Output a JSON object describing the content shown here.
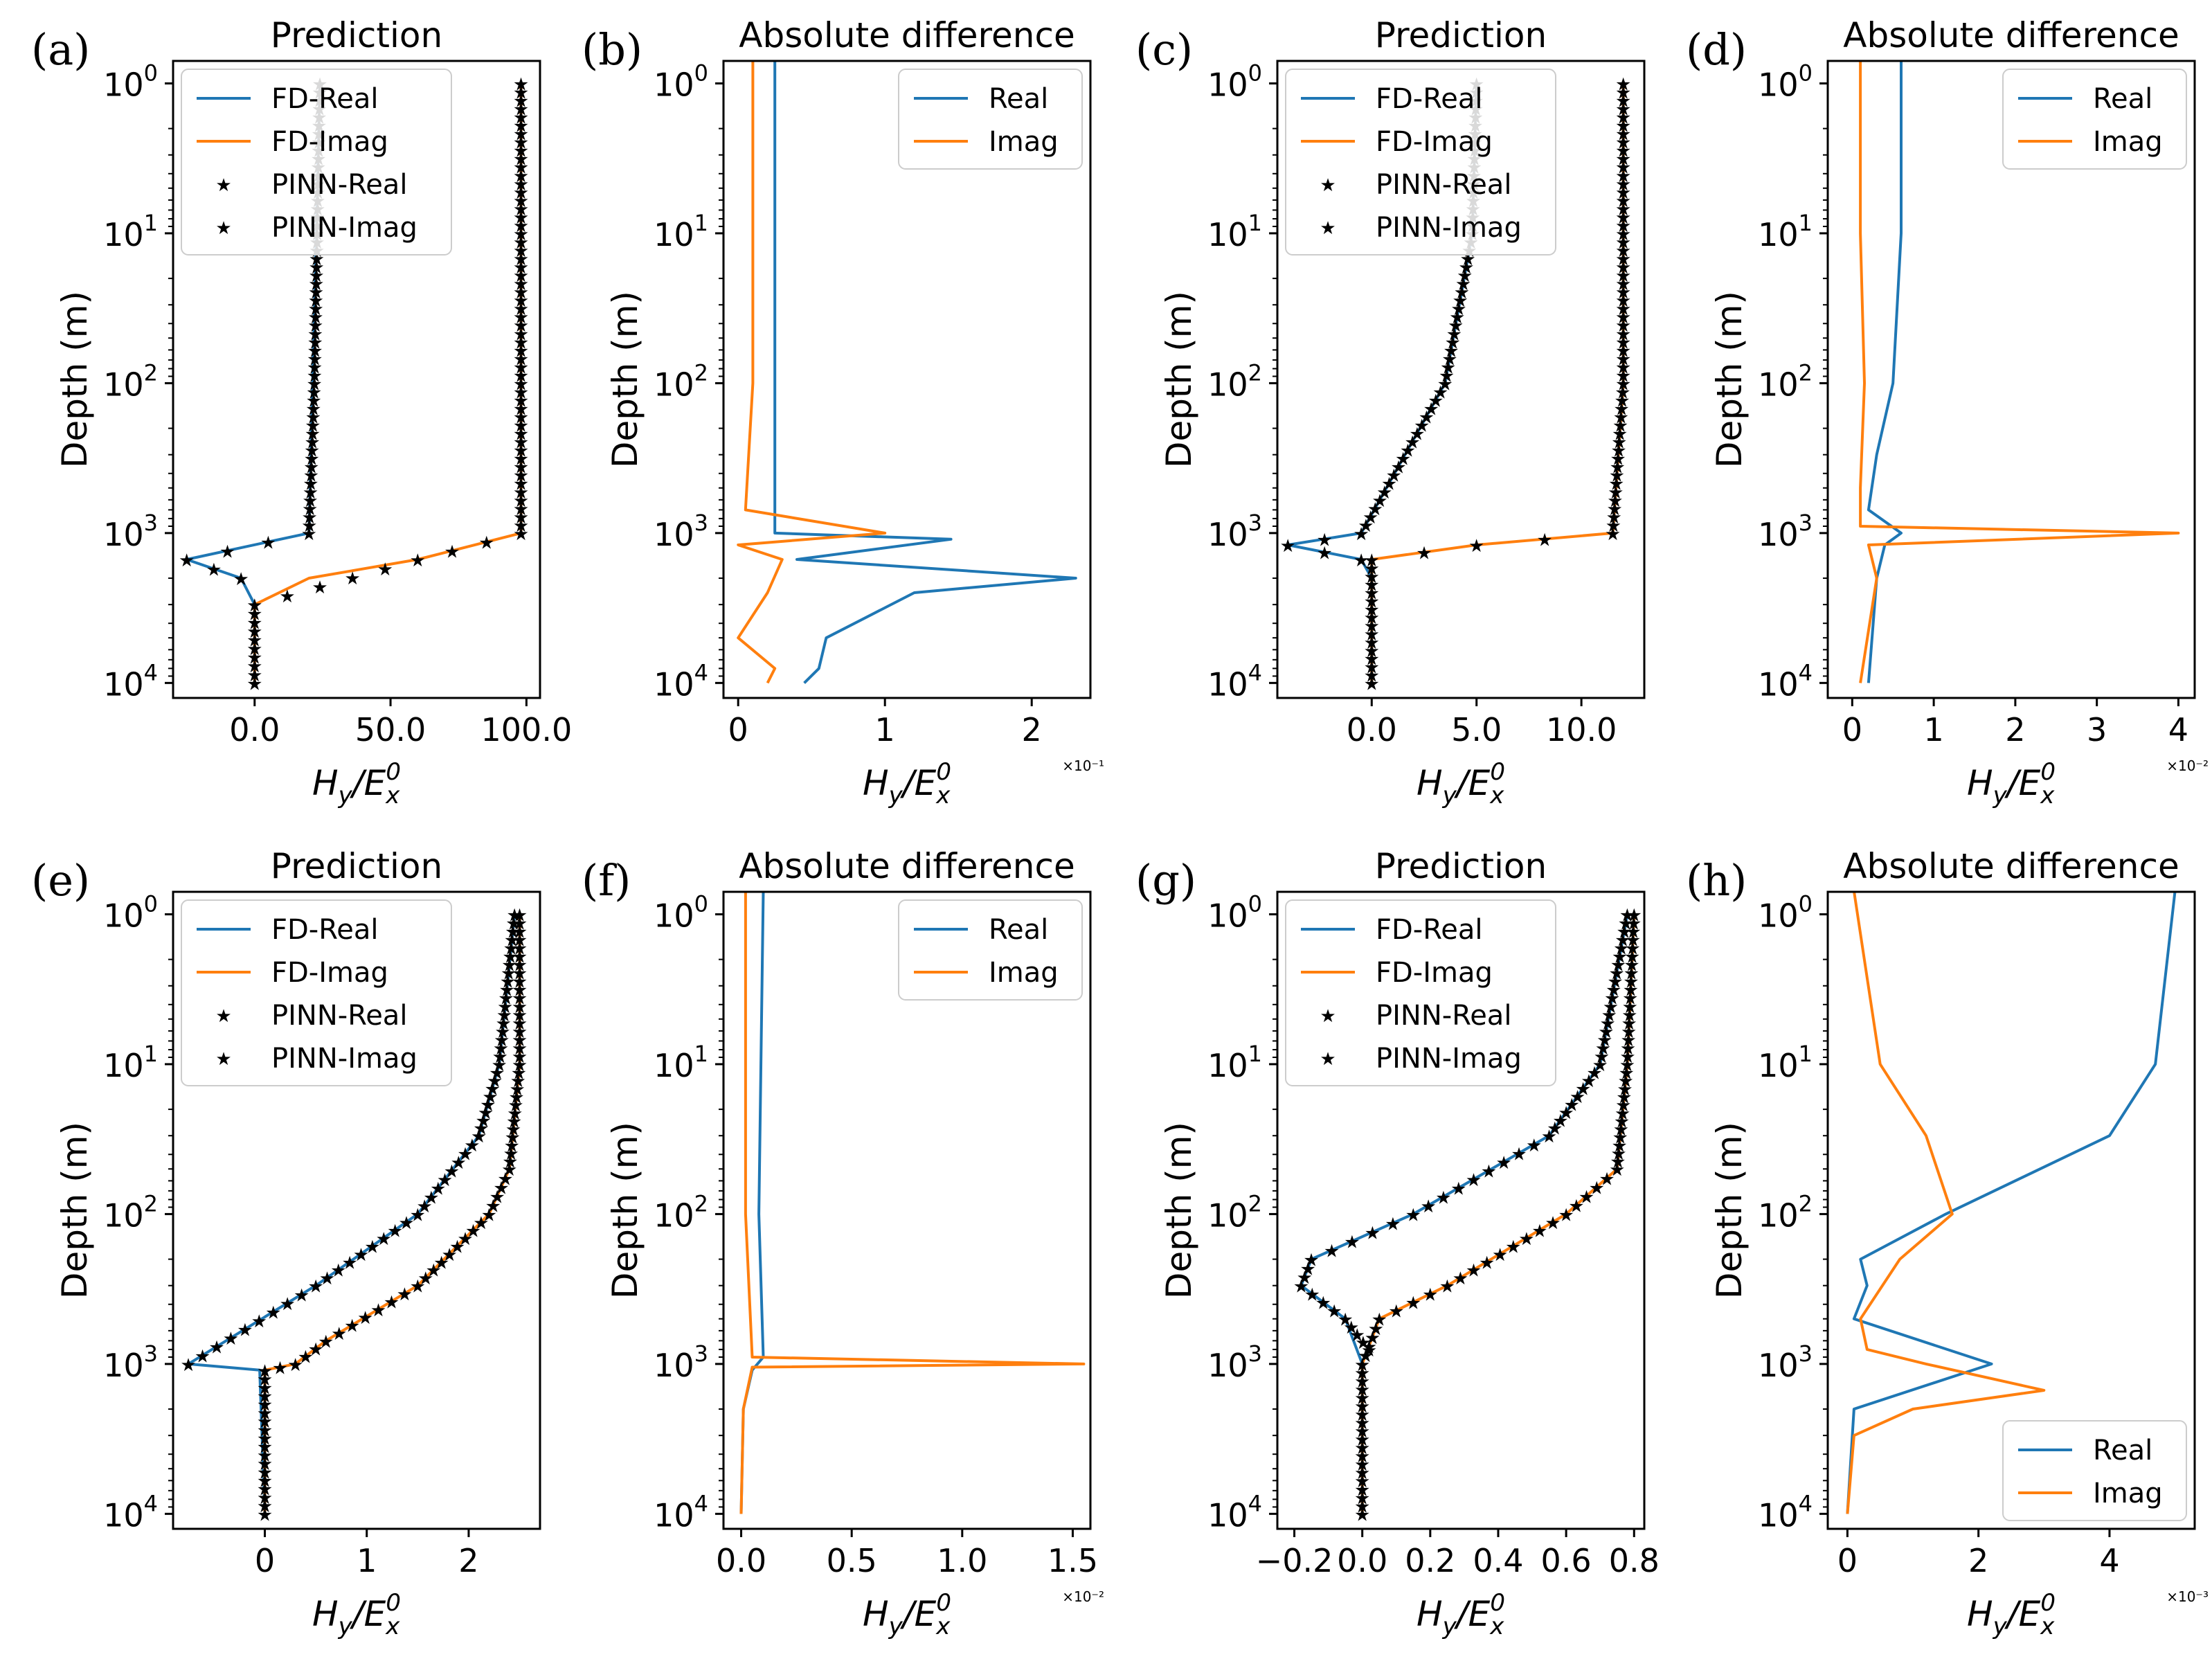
{
  "figure": {
    "description_free": true,
    "xlabel": {
      "main": "H",
      "sub1": "y",
      "slash": "/",
      "main2": "E",
      "sub2": "x",
      "sup2": "0"
    }
  },
  "chart_data": [
    {
      "id": "a",
      "letter": "(a)",
      "type": "line",
      "title": "Prediction",
      "ylabel": "Depth (m)",
      "xlim": [
        -30,
        105
      ],
      "ylim_log": [
        -0.15,
        4.1
      ],
      "yscale": "log",
      "y_inverted": true,
      "xticks": [
        0,
        50,
        100
      ],
      "xtick_labels": [
        "0.0",
        "50.0",
        "100.0"
      ],
      "multiplier": "",
      "legend_position": "top-left",
      "legend": [
        "FD-Real",
        "FD-Imag",
        "PINN-Real",
        "PINN-Imag"
      ],
      "series": [
        {
          "name": "FD-Real",
          "style": "line",
          "color": "#1f77b4",
          "y": [
            1,
            1000,
            1500,
            2000,
            3000,
            10000
          ],
          "x": [
            24,
            20,
            -25,
            -5,
            0,
            0
          ]
        },
        {
          "name": "FD-Imag",
          "style": "line",
          "color": "#ff7f0e",
          "y": [
            1,
            1000,
            1500,
            2000,
            3000,
            10000
          ],
          "x": [
            98,
            98,
            60,
            20,
            0,
            0
          ]
        },
        {
          "name": "PINN-Real",
          "style": "marker",
          "color": "#2ca02c",
          "y": [
            1,
            10,
            100,
            1000,
            1500,
            2000
          ],
          "x": [
            24,
            23,
            22,
            20,
            -25,
            -5
          ]
        },
        {
          "name": "PINN-Imag",
          "style": "marker",
          "color": "#d62728",
          "y": [
            1,
            10,
            100,
            1000,
            1500,
            3000,
            10000
          ],
          "x": [
            98,
            98,
            98,
            98,
            60,
            0,
            0
          ]
        }
      ]
    },
    {
      "id": "b",
      "letter": "(b)",
      "type": "line",
      "title": "Absolute difference",
      "ylabel": "Depth (m)",
      "xlim": [
        -0.1,
        2.4
      ],
      "ylim_log": [
        -0.15,
        4.1
      ],
      "yscale": "log",
      "y_inverted": true,
      "xticks": [
        0,
        1,
        2
      ],
      "xtick_labels": [
        "0",
        "1",
        "2"
      ],
      "multiplier": "×10⁻¹",
      "legend_position": "top-right",
      "legend": [
        "Real",
        "Imag"
      ],
      "series": [
        {
          "name": "Real",
          "style": "line",
          "color": "#1f77b4",
          "y": [
            0.7,
            100,
            1000,
            1100,
            1500,
            2000,
            2500,
            5000,
            8000,
            10000
          ],
          "x": [
            0.25,
            0.25,
            0.25,
            1.45,
            0.4,
            2.3,
            1.2,
            0.6,
            0.55,
            0.45
          ]
        },
        {
          "name": "Imag",
          "style": "line",
          "color": "#ff7f0e",
          "y": [
            0.7,
            100,
            700,
            1000,
            1200,
            1500,
            2500,
            5000,
            8000,
            10000
          ],
          "x": [
            0.1,
            0.1,
            0.05,
            1.0,
            0.0,
            0.3,
            0.2,
            0.0,
            0.25,
            0.2
          ]
        }
      ]
    },
    {
      "id": "c",
      "letter": "(c)",
      "type": "line",
      "title": "Prediction",
      "ylabel": "Depth (m)",
      "xlim": [
        -4.5,
        13
      ],
      "ylim_log": [
        -0.15,
        4.1
      ],
      "yscale": "log",
      "y_inverted": true,
      "xticks": [
        0,
        5,
        10
      ],
      "xtick_labels": [
        "0.0",
        "5.0",
        "10.0"
      ],
      "multiplier": "",
      "legend_position": "top-left",
      "legend": [
        "FD-Real",
        "FD-Imag",
        "PINN-Real",
        "PINN-Imag"
      ],
      "series": [
        {
          "name": "FD-Real",
          "style": "line",
          "color": "#1f77b4",
          "y": [
            1,
            10,
            100,
            1000,
            1200,
            1500,
            2000,
            10000
          ],
          "x": [
            5.0,
            4.8,
            3.5,
            -0.5,
            -4.0,
            -0.5,
            0.0,
            0.0
          ]
        },
        {
          "name": "FD-Imag",
          "style": "line",
          "color": "#ff7f0e",
          "y": [
            1,
            10,
            100,
            1000,
            1200,
            1500,
            10000
          ],
          "x": [
            12.0,
            12.0,
            12.0,
            11.5,
            5.0,
            0.0,
            0.0
          ]
        },
        {
          "name": "PINN-Real",
          "style": "marker",
          "color": "#2ca02c",
          "y": [
            1,
            10,
            100,
            1000,
            1200,
            1500
          ],
          "x": [
            5.0,
            4.8,
            3.5,
            -0.5,
            -4.0,
            -0.5
          ]
        },
        {
          "name": "PINN-Imag",
          "style": "marker",
          "color": "#d62728",
          "y": [
            1,
            10,
            100,
            1000,
            1200,
            1500,
            10000
          ],
          "x": [
            12.0,
            12.0,
            12.0,
            11.5,
            5.0,
            0.0,
            0.0
          ]
        }
      ]
    },
    {
      "id": "d",
      "letter": "(d)",
      "type": "line",
      "title": "Absolute difference",
      "ylabel": "Depth (m)",
      "xlim": [
        -0.3,
        4.2
      ],
      "ylim_log": [
        -0.15,
        4.1
      ],
      "yscale": "log",
      "y_inverted": true,
      "xticks": [
        0,
        1,
        2,
        3,
        4
      ],
      "xtick_labels": [
        "0",
        "1",
        "2",
        "3",
        "4"
      ],
      "multiplier": "×10⁻²",
      "legend_position": "top-right",
      "legend": [
        "Real",
        "Imag"
      ],
      "series": [
        {
          "name": "Real",
          "style": "line",
          "color": "#1f77b4",
          "y": [
            0.7,
            10,
            100,
            300,
            700,
            1000,
            1200,
            2000,
            10000
          ],
          "x": [
            0.6,
            0.6,
            0.5,
            0.3,
            0.2,
            0.6,
            0.4,
            0.3,
            0.2
          ]
        },
        {
          "name": "Imag",
          "style": "line",
          "color": "#ff7f0e",
          "y": [
            0.7,
            10,
            100,
            500,
            900,
            1000,
            1200,
            2000,
            10000
          ],
          "x": [
            0.1,
            0.1,
            0.15,
            0.1,
            0.1,
            4.0,
            0.2,
            0.3,
            0.1
          ]
        }
      ]
    },
    {
      "id": "e",
      "letter": "(e)",
      "type": "line",
      "title": "Prediction",
      "ylabel": "Depth (m)",
      "xlim": [
        -0.9,
        2.7
      ],
      "ylim_log": [
        -0.15,
        4.1
      ],
      "yscale": "log",
      "y_inverted": true,
      "xticks": [
        0,
        1,
        2
      ],
      "xtick_labels": [
        "0",
        "1",
        "2"
      ],
      "multiplier": "",
      "legend_position": "top-left",
      "legend": [
        "FD-Real",
        "FD-Imag",
        "PINN-Real",
        "PINN-Imag"
      ],
      "series": [
        {
          "name": "FD-Real",
          "style": "line",
          "color": "#1f77b4",
          "y": [
            1,
            10,
            30,
            100,
            300,
            1000,
            1100,
            10000
          ],
          "x": [
            2.45,
            2.3,
            2.1,
            1.5,
            0.5,
            -0.75,
            -0.05,
            0.0
          ]
        },
        {
          "name": "FD-Imag",
          "style": "line",
          "color": "#ff7f0e",
          "y": [
            1,
            10,
            50,
            100,
            300,
            700,
            1000,
            1100,
            10000
          ],
          "x": [
            2.5,
            2.5,
            2.4,
            2.2,
            1.5,
            0.6,
            0.3,
            0.0,
            0.0
          ]
        },
        {
          "name": "PINN-Real",
          "style": "marker",
          "color": "#2ca02c",
          "y": [
            1,
            10,
            30,
            100,
            300,
            1000
          ],
          "x": [
            2.45,
            2.3,
            2.1,
            1.5,
            0.5,
            -0.75
          ]
        },
        {
          "name": "PINN-Imag",
          "style": "marker",
          "color": "#d62728",
          "y": [
            1,
            10,
            50,
            100,
            300,
            700,
            1000,
            1100,
            10000
          ],
          "x": [
            2.5,
            2.5,
            2.4,
            2.2,
            1.5,
            0.6,
            0.3,
            0.0,
            0.0
          ]
        }
      ]
    },
    {
      "id": "f",
      "letter": "(f)",
      "type": "line",
      "title": "Absolute difference",
      "ylabel": "Depth (m)",
      "xlim": [
        -0.08,
        1.58
      ],
      "ylim_log": [
        -0.15,
        4.1
      ],
      "yscale": "log",
      "y_inverted": true,
      "xticks": [
        0,
        0.5,
        1.0,
        1.5
      ],
      "xtick_labels": [
        "0.0",
        "0.5",
        "1.0",
        "1.5"
      ],
      "multiplier": "×10⁻²",
      "legend_position": "top-right",
      "legend": [
        "Real",
        "Imag"
      ],
      "series": [
        {
          "name": "Real",
          "style": "line",
          "color": "#1f77b4",
          "y": [
            0.7,
            100,
            900,
            1100,
            2000,
            10000
          ],
          "x": [
            0.1,
            0.08,
            0.1,
            0.05,
            0.01,
            0.0
          ]
        },
        {
          "name": "Imag",
          "style": "line",
          "color": "#ff7f0e",
          "y": [
            0.7,
            100,
            900,
            1000,
            1050,
            2000,
            10000
          ],
          "x": [
            0.02,
            0.02,
            0.05,
            1.55,
            0.05,
            0.01,
            0.0
          ]
        }
      ]
    },
    {
      "id": "g",
      "letter": "(g)",
      "type": "line",
      "title": "Prediction",
      "ylabel": "Depth (m)",
      "xlim": [
        -0.25,
        0.83
      ],
      "ylim_log": [
        -0.15,
        4.1
      ],
      "yscale": "log",
      "y_inverted": true,
      "xticks": [
        -0.2,
        0.0,
        0.2,
        0.4,
        0.6,
        0.8
      ],
      "xtick_labels": [
        "−0.2",
        "0.0",
        "0.2",
        "0.4",
        "0.6",
        "0.8"
      ],
      "multiplier": "",
      "legend_position": "top-left",
      "legend": [
        "FD-Real",
        "FD-Imag",
        "PINN-Real",
        "PINN-Imag"
      ],
      "series": [
        {
          "name": "FD-Real",
          "style": "line",
          "color": "#1f77b4",
          "y": [
            1,
            10,
            30,
            100,
            200,
            300,
            500,
            1000,
            10000
          ],
          "x": [
            0.78,
            0.7,
            0.55,
            0.15,
            -0.15,
            -0.18,
            -0.05,
            0.0,
            0.0
          ]
        },
        {
          "name": "FD-Imag",
          "style": "line",
          "color": "#ff7f0e",
          "y": [
            1,
            10,
            50,
            100,
            300,
            500,
            1000,
            10000
          ],
          "x": [
            0.8,
            0.78,
            0.75,
            0.6,
            0.25,
            0.05,
            0.0,
            0.0
          ]
        },
        {
          "name": "PINN-Real",
          "style": "marker",
          "color": "#2ca02c",
          "y": [
            1,
            10,
            30,
            100,
            200,
            300,
            500,
            800
          ],
          "x": [
            0.78,
            0.7,
            0.55,
            0.15,
            -0.15,
            -0.18,
            -0.05,
            0.02
          ]
        },
        {
          "name": "PINN-Imag",
          "style": "marker",
          "color": "#d62728",
          "y": [
            1,
            10,
            50,
            100,
            300,
            500,
            1000,
            10000
          ],
          "x": [
            0.8,
            0.78,
            0.75,
            0.6,
            0.25,
            0.05,
            0.0,
            0.0
          ]
        }
      ]
    },
    {
      "id": "h",
      "letter": "(h)",
      "type": "line",
      "title": "Absolute difference",
      "ylabel": "Depth (m)",
      "xlim": [
        -0.3,
        5.3
      ],
      "ylim_log": [
        -0.15,
        4.1
      ],
      "yscale": "log",
      "y_inverted": true,
      "xticks": [
        0,
        2,
        4
      ],
      "xtick_labels": [
        "0",
        "2",
        "4"
      ],
      "multiplier": "×10⁻³",
      "legend_position": "bottom-right",
      "legend": [
        "Real",
        "Imag"
      ],
      "series": [
        {
          "name": "Real",
          "style": "line",
          "color": "#1f77b4",
          "y": [
            0.7,
            10,
            30,
            100,
            200,
            300,
            500,
            1000,
            2000,
            10000
          ],
          "x": [
            5.0,
            4.7,
            4.0,
            1.5,
            0.2,
            0.3,
            0.1,
            2.2,
            0.1,
            0.0
          ]
        },
        {
          "name": "Imag",
          "style": "line",
          "color": "#ff7f0e",
          "y": [
            0.7,
            10,
            30,
            100,
            200,
            500,
            800,
            1000,
            1500,
            2000,
            3000,
            10000
          ],
          "x": [
            0.1,
            0.5,
            1.2,
            1.6,
            0.8,
            0.2,
            0.3,
            1.2,
            3.0,
            1.0,
            0.1,
            0.0
          ]
        }
      ]
    }
  ]
}
